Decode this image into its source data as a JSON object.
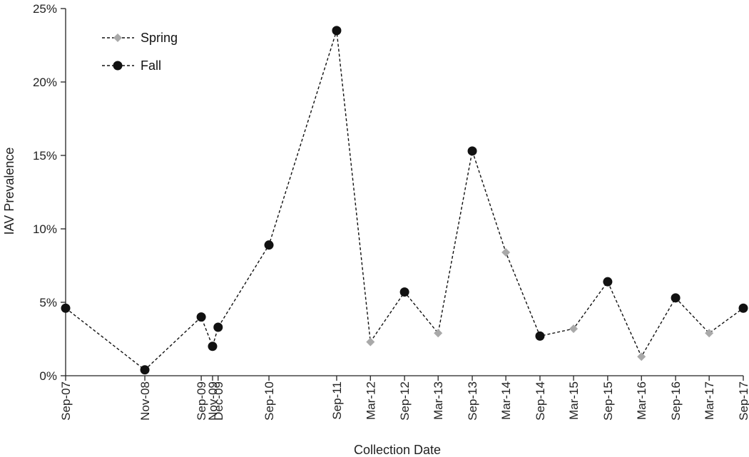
{
  "chart_data": {
    "type": "line",
    "title": "",
    "xlabel": "Collection Date",
    "ylabel": "IAV Prevalence",
    "ylim": [
      0,
      25
    ],
    "y_ticks": [
      "0%",
      "5%",
      "10%",
      "15%",
      "20%",
      "25%"
    ],
    "x_domain": [
      "2007-09-01",
      "2017-09-01"
    ],
    "grid": false,
    "legend_position": "top-left",
    "line_color": "#111111",
    "line_style": "dashed",
    "series": [
      {
        "name": "Spring",
        "marker": "diamond",
        "color": "#a9a9a9"
      },
      {
        "name": "Fall",
        "marker": "circle",
        "color": "#111111"
      }
    ],
    "points": [
      {
        "date": "2007-09-01",
        "label": "Sep-07",
        "season": "Fall",
        "value": 4.6
      },
      {
        "date": "2008-11-01",
        "label": "Nov-08",
        "season": "Fall",
        "value": 0.4
      },
      {
        "date": "2009-09-01",
        "label": "Sep-09",
        "season": "Fall",
        "value": 4.0
      },
      {
        "date": "2009-11-01",
        "label": "Nov-09",
        "season": "Fall",
        "value": 2.0
      },
      {
        "date": "2009-12-01",
        "label": "Dec-09",
        "season": "Fall",
        "value": 3.3
      },
      {
        "date": "2010-09-01",
        "label": "Sep-10",
        "season": "Fall",
        "value": 8.9
      },
      {
        "date": "2011-09-01",
        "label": "Sep-11",
        "season": "Fall",
        "value": 23.5
      },
      {
        "date": "2012-03-01",
        "label": "Mar-12",
        "season": "Spring",
        "value": 2.3
      },
      {
        "date": "2012-09-01",
        "label": "Sep-12",
        "season": "Fall",
        "value": 5.7
      },
      {
        "date": "2013-03-01",
        "label": "Mar-13",
        "season": "Spring",
        "value": 2.9
      },
      {
        "date": "2013-09-01",
        "label": "Sep-13",
        "season": "Fall",
        "value": 15.3
      },
      {
        "date": "2014-03-01",
        "label": "Mar-14",
        "season": "Spring",
        "value": 8.4
      },
      {
        "date": "2014-09-01",
        "label": "Sep-14",
        "season": "Fall",
        "value": 2.7
      },
      {
        "date": "2015-03-01",
        "label": "Mar-15",
        "season": "Spring",
        "value": 3.2
      },
      {
        "date": "2015-09-01",
        "label": "Sep-15",
        "season": "Fall",
        "value": 6.4
      },
      {
        "date": "2016-03-01",
        "label": "Mar-16",
        "season": "Spring",
        "value": 1.3
      },
      {
        "date": "2016-09-01",
        "label": "Sep-16",
        "season": "Fall",
        "value": 5.3
      },
      {
        "date": "2017-03-01",
        "label": "Mar-17",
        "season": "Spring",
        "value": 2.9
      },
      {
        "date": "2017-09-01",
        "label": "Sep-17",
        "season": "Fall",
        "value": 4.6
      }
    ]
  }
}
